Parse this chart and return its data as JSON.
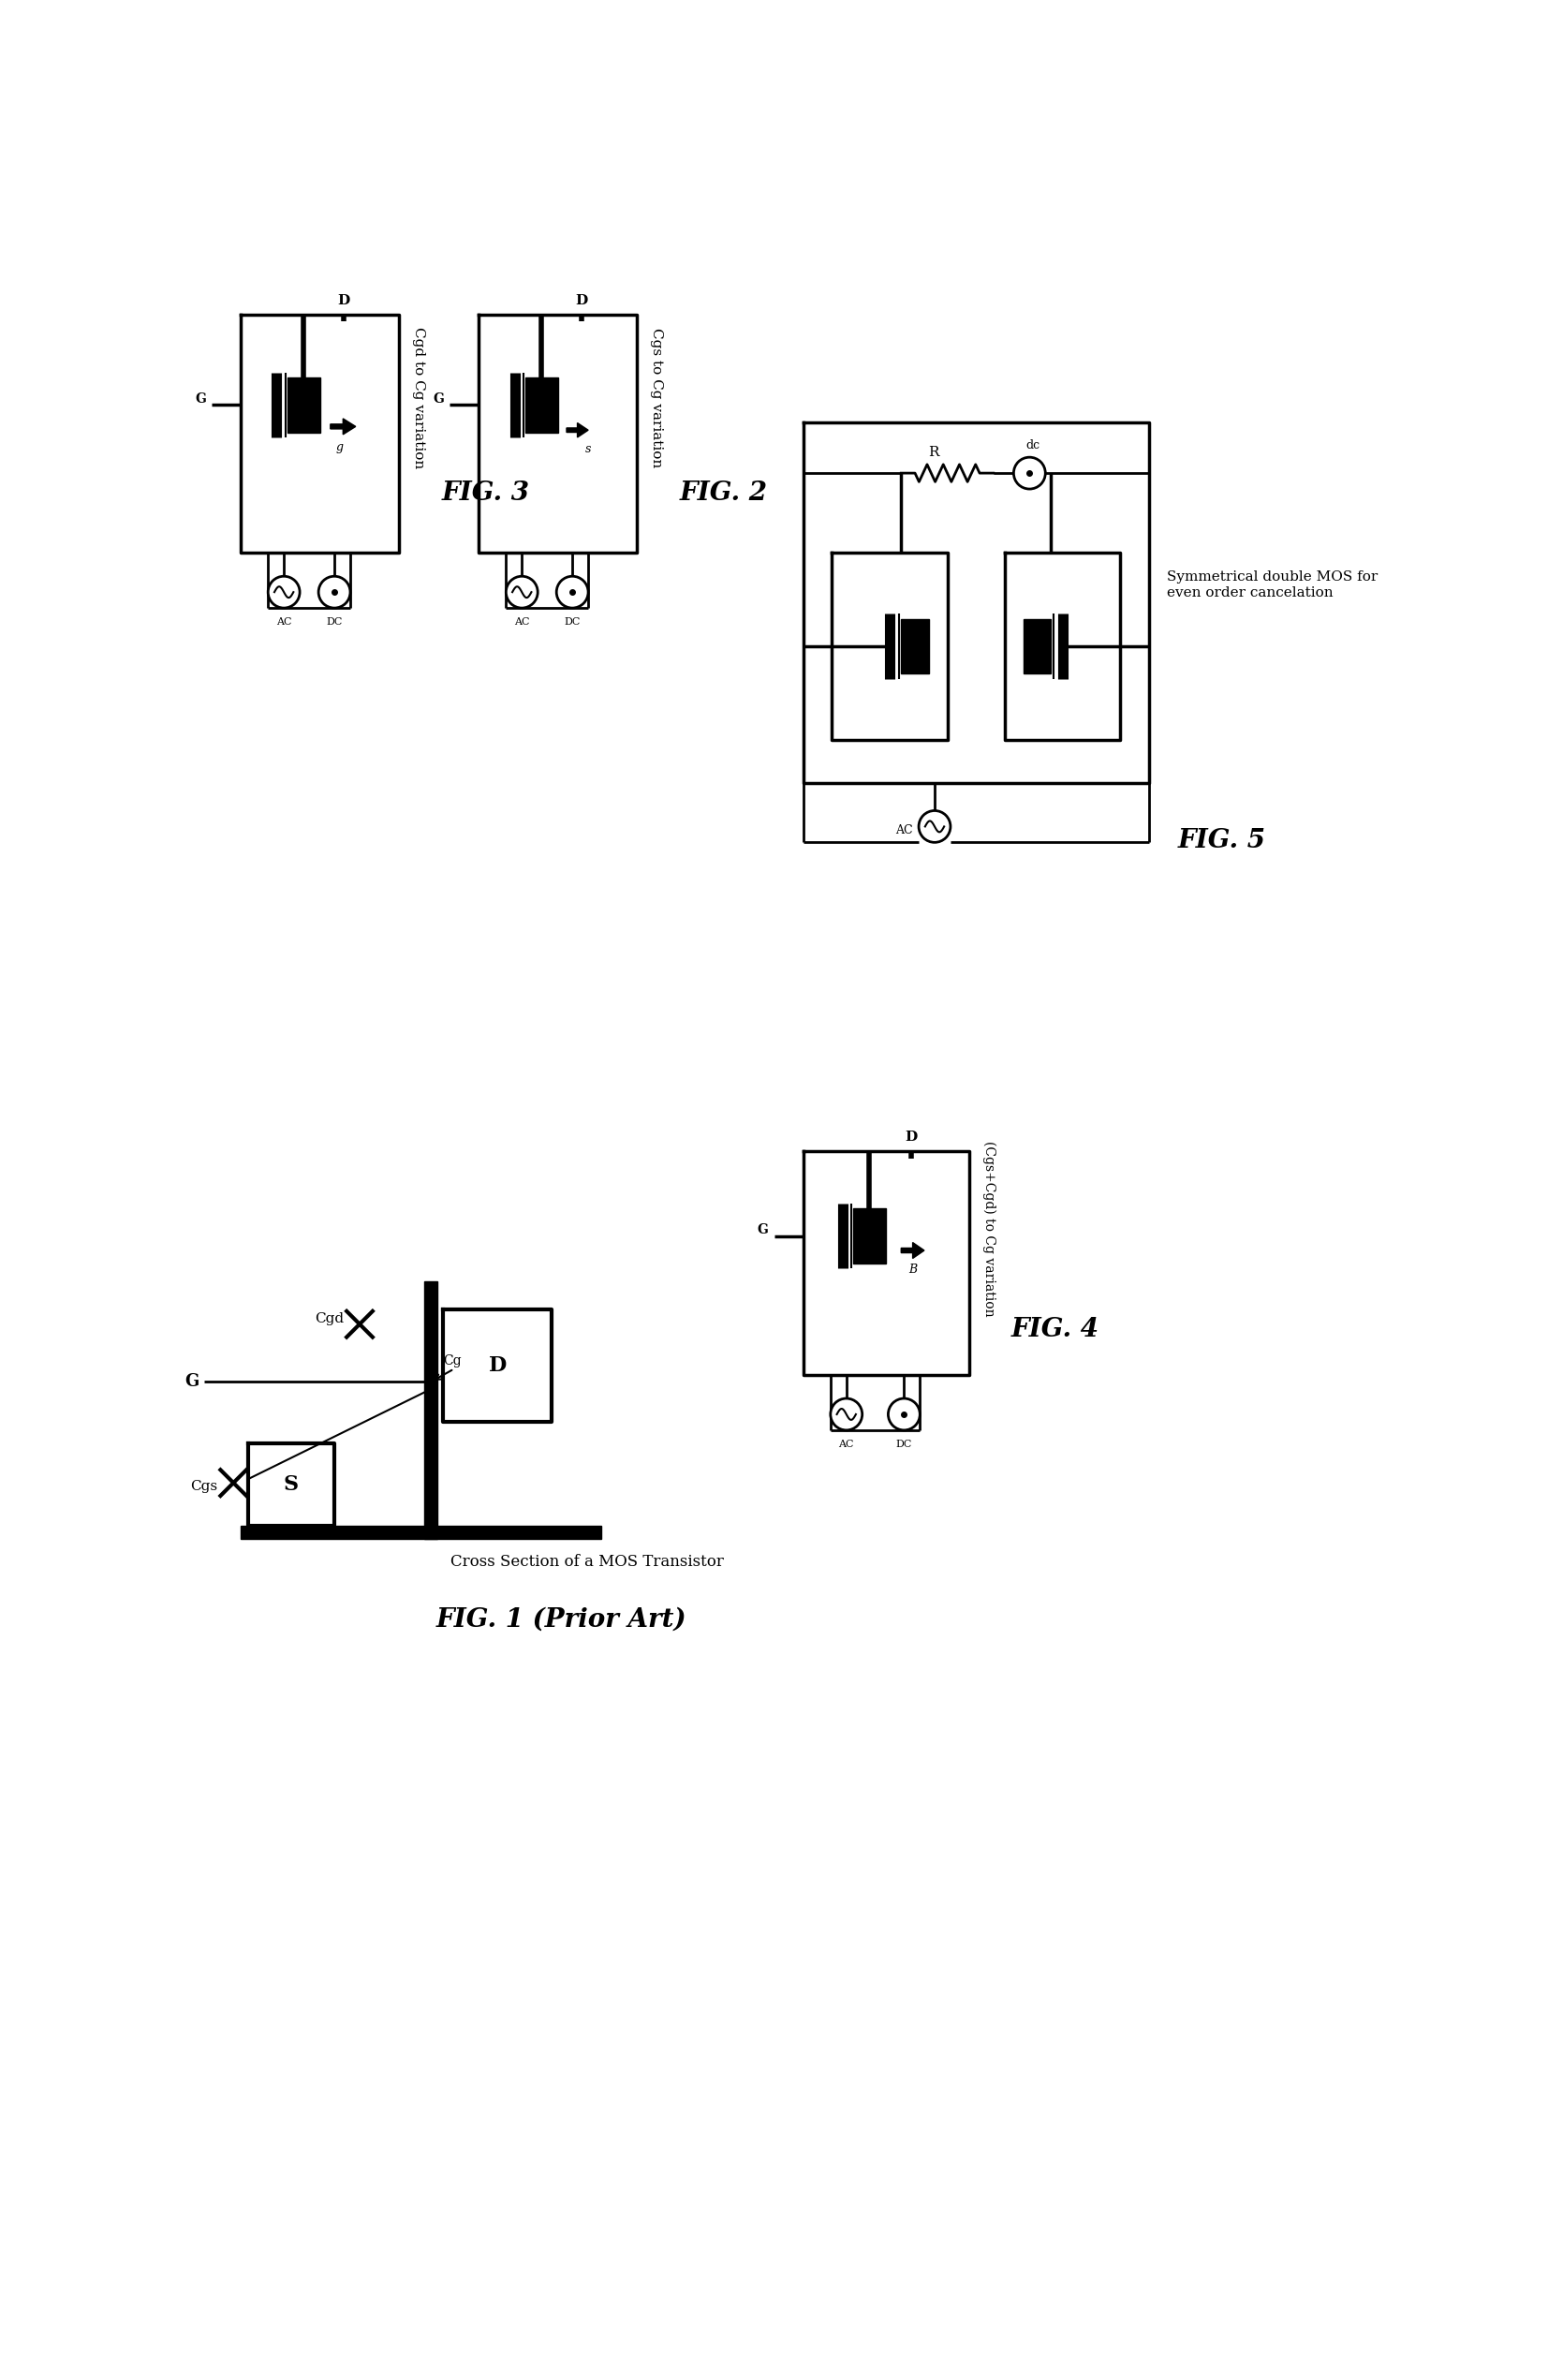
{
  "background_color": "#ffffff",
  "fig_width": 16.53,
  "fig_height": 25.41,
  "fig1_title": "FIG. 1 (Prior Art)",
  "fig1_subtitle": "Cross Section of a MOS Transistor",
  "fig2_title": "FIG. 2",
  "fig2_subtitle": "Cgs to Cg variation",
  "fig3_title": "FIG. 3",
  "fig3_subtitle": "Cgd to Cg variation",
  "fig4_title": "FIG. 4",
  "fig4_subtitle": "(Cgs+Cgd) to Cg variation",
  "fig5_title": "FIG. 5",
  "fig5_subtitle": "Symmetrical double MOS for\neven order cancelation"
}
